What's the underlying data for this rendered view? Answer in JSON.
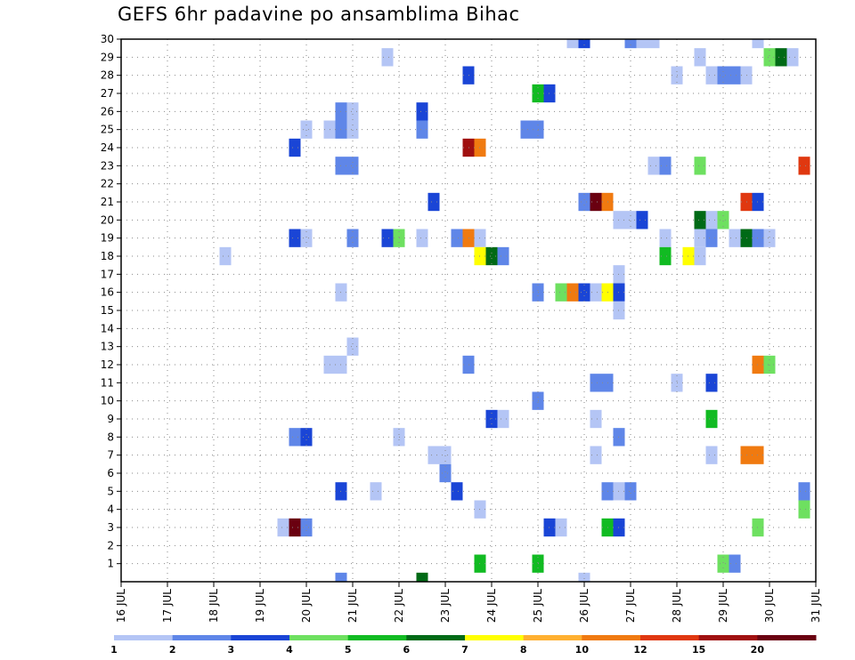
{
  "chart_data": {
    "type": "heatmap",
    "title": "GEFS 6hr padavine po ansamblima Bihac",
    "xlabel": "",
    "ylabel": "",
    "x_ticks": [
      "16 JUL",
      "17 JUL",
      "18 JUL",
      "19 JUL",
      "20 JUL",
      "21 JUL",
      "22 JUL",
      "23 JUL",
      "24 JUL",
      "25 JUL",
      "26 JUL",
      "27 JUL",
      "28 JUL",
      "29 JUL",
      "30 JUL",
      "31 JUL"
    ],
    "x_range_days": [
      16,
      31
    ],
    "y_ticks": [
      1,
      2,
      3,
      4,
      5,
      6,
      7,
      8,
      9,
      10,
      11,
      12,
      13,
      14,
      15,
      16,
      17,
      18,
      19,
      20,
      21,
      22,
      23,
      24,
      25,
      26,
      27,
      28,
      29,
      30
    ],
    "y_range": [
      0,
      30
    ],
    "grid": true,
    "legend_position": "bottom",
    "color_scale": {
      "levels": [
        "1",
        "2",
        "3",
        "4",
        "5",
        "6",
        "7",
        "8",
        "10",
        "12",
        "15",
        "20"
      ],
      "colors": [
        "#b4c5f5",
        "#5f86e8",
        "#1a45d6",
        "#6ee060",
        "#11bb22",
        "#006a16",
        "#ffff00",
        "#ffb030",
        "#f07a10",
        "#e03810",
        "#a01010",
        "#6a0010"
      ]
    },
    "cells": [
      {
        "m": 30,
        "d": "2026-07-25 18:00",
        "v": 1
      },
      {
        "m": 30,
        "d": "2026-07-26 00:00",
        "v": 3
      },
      {
        "m": 30,
        "d": "2026-07-27 00:00",
        "v": 2
      },
      {
        "m": 30,
        "d": "2026-07-27 06:00",
        "v": 1
      },
      {
        "m": 30,
        "d": "2026-07-27 12:00",
        "v": 1
      },
      {
        "m": 30,
        "d": "2026-07-29 18:00",
        "v": 1
      },
      {
        "m": 29,
        "d": "2026-07-21 18:00",
        "v": 1
      },
      {
        "m": 29,
        "d": "2026-07-28 12:00",
        "v": 1
      },
      {
        "m": 29,
        "d": "2026-07-30 00:00",
        "v": 4
      },
      {
        "m": 29,
        "d": "2026-07-30 06:00",
        "v": 6
      },
      {
        "m": 29,
        "d": "2026-07-30 12:00",
        "v": 1
      },
      {
        "m": 28,
        "d": "2026-07-23 12:00",
        "v": 3
      },
      {
        "m": 28,
        "d": "2026-07-28 00:00",
        "v": 1
      },
      {
        "m": 28,
        "d": "2026-07-28 18:00",
        "v": 1
      },
      {
        "m": 28,
        "d": "2026-07-29 00:00",
        "v": 2
      },
      {
        "m": 28,
        "d": "2026-07-29 06:00",
        "v": 2
      },
      {
        "m": 28,
        "d": "2026-07-29 12:00",
        "v": 1
      },
      {
        "m": 27,
        "d": "2026-07-25 00:00",
        "v": 5
      },
      {
        "m": 27,
        "d": "2026-07-25 06:00",
        "v": 3
      },
      {
        "m": 26,
        "d": "2026-07-20 18:00",
        "v": 2
      },
      {
        "m": 26,
        "d": "2026-07-21 00:00",
        "v": 1
      },
      {
        "m": 26,
        "d": "2026-07-22 12:00",
        "v": 3
      },
      {
        "m": 25,
        "d": "2026-07-20 00:00",
        "v": 1
      },
      {
        "m": 25,
        "d": "2026-07-20 12:00",
        "v": 1
      },
      {
        "m": 25,
        "d": "2026-07-20 18:00",
        "v": 2
      },
      {
        "m": 25,
        "d": "2026-07-21 00:00",
        "v": 1
      },
      {
        "m": 25,
        "d": "2026-07-22 12:00",
        "v": 2
      },
      {
        "m": 25,
        "d": "2026-07-24 18:00",
        "v": 2
      },
      {
        "m": 25,
        "d": "2026-07-25 00:00",
        "v": 2
      },
      {
        "m": 24,
        "d": "2026-07-19 18:00",
        "v": 3
      },
      {
        "m": 24,
        "d": "2026-07-23 12:00",
        "v": 15
      },
      {
        "m": 24,
        "d": "2026-07-23 18:00",
        "v": 10
      },
      {
        "m": 23,
        "d": "2026-07-20 18:00",
        "v": 2
      },
      {
        "m": 23,
        "d": "2026-07-21 00:00",
        "v": 2
      },
      {
        "m": 23,
        "d": "2026-07-27 12:00",
        "v": 1
      },
      {
        "m": 23,
        "d": "2026-07-27 18:00",
        "v": 2
      },
      {
        "m": 23,
        "d": "2026-07-28 12:00",
        "v": 4
      },
      {
        "m": 23,
        "d": "2026-07-30 18:00",
        "v": 12
      },
      {
        "m": 21,
        "d": "2026-07-22 18:00",
        "v": 3
      },
      {
        "m": 21,
        "d": "2026-07-26 00:00",
        "v": 2
      },
      {
        "m": 21,
        "d": "2026-07-26 06:00",
        "v": 20
      },
      {
        "m": 21,
        "d": "2026-07-26 12:00",
        "v": 10
      },
      {
        "m": 21,
        "d": "2026-07-29 12:00",
        "v": 12
      },
      {
        "m": 21,
        "d": "2026-07-29 18:00",
        "v": 3
      },
      {
        "m": 20,
        "d": "2026-07-26 18:00",
        "v": 1
      },
      {
        "m": 20,
        "d": "2026-07-27 00:00",
        "v": 1
      },
      {
        "m": 20,
        "d": "2026-07-27 06:00",
        "v": 3
      },
      {
        "m": 20,
        "d": "2026-07-28 12:00",
        "v": 6
      },
      {
        "m": 20,
        "d": "2026-07-28 18:00",
        "v": 1
      },
      {
        "m": 20,
        "d": "2026-07-29 00:00",
        "v": 4
      },
      {
        "m": 19,
        "d": "2026-07-19 18:00",
        "v": 3
      },
      {
        "m": 19,
        "d": "2026-07-20 00:00",
        "v": 1
      },
      {
        "m": 19,
        "d": "2026-07-21 00:00",
        "v": 2
      },
      {
        "m": 19,
        "d": "2026-07-21 18:00",
        "v": 3
      },
      {
        "m": 19,
        "d": "2026-07-22 00:00",
        "v": 4
      },
      {
        "m": 19,
        "d": "2026-07-22 12:00",
        "v": 1
      },
      {
        "m": 19,
        "d": "2026-07-23 06:00",
        "v": 2
      },
      {
        "m": 19,
        "d": "2026-07-23 12:00",
        "v": 10
      },
      {
        "m": 19,
        "d": "2026-07-23 18:00",
        "v": 1
      },
      {
        "m": 19,
        "d": "2026-07-27 18:00",
        "v": 1
      },
      {
        "m": 19,
        "d": "2026-07-28 12:00",
        "v": 1
      },
      {
        "m": 19,
        "d": "2026-07-28 18:00",
        "v": 2
      },
      {
        "m": 19,
        "d": "2026-07-29 06:00",
        "v": 1
      },
      {
        "m": 19,
        "d": "2026-07-29 12:00",
        "v": 6
      },
      {
        "m": 19,
        "d": "2026-07-29 18:00",
        "v": 2
      },
      {
        "m": 19,
        "d": "2026-07-30 00:00",
        "v": 1
      },
      {
        "m": 18,
        "d": "2026-07-18 06:00",
        "v": 1
      },
      {
        "m": 18,
        "d": "2026-07-23 18:00",
        "v": 7
      },
      {
        "m": 18,
        "d": "2026-07-24 00:00",
        "v": 6
      },
      {
        "m": 18,
        "d": "2026-07-24 06:00",
        "v": 2
      },
      {
        "m": 18,
        "d": "2026-07-27 18:00",
        "v": 5
      },
      {
        "m": 18,
        "d": "2026-07-28 06:00",
        "v": 7
      },
      {
        "m": 18,
        "d": "2026-07-28 12:00",
        "v": 1
      },
      {
        "m": 17,
        "d": "2026-07-26 18:00",
        "v": 1
      },
      {
        "m": 16,
        "d": "2026-07-20 18:00",
        "v": 1
      },
      {
        "m": 16,
        "d": "2026-07-25 00:00",
        "v": 2
      },
      {
        "m": 16,
        "d": "2026-07-25 12:00",
        "v": 4
      },
      {
        "m": 16,
        "d": "2026-07-25 18:00",
        "v": 10
      },
      {
        "m": 16,
        "d": "2026-07-26 00:00",
        "v": 3
      },
      {
        "m": 16,
        "d": "2026-07-26 06:00",
        "v": 1
      },
      {
        "m": 16,
        "d": "2026-07-26 12:00",
        "v": 7
      },
      {
        "m": 16,
        "d": "2026-07-26 18:00",
        "v": 3
      },
      {
        "m": 15,
        "d": "2026-07-26 18:00",
        "v": 1
      },
      {
        "m": 13,
        "d": "2026-07-21 00:00",
        "v": 1
      },
      {
        "m": 12,
        "d": "2026-07-20 12:00",
        "v": 1
      },
      {
        "m": 12,
        "d": "2026-07-20 18:00",
        "v": 1
      },
      {
        "m": 12,
        "d": "2026-07-23 12:00",
        "v": 2
      },
      {
        "m": 12,
        "d": "2026-07-29 18:00",
        "v": 10
      },
      {
        "m": 12,
        "d": "2026-07-30 00:00",
        "v": 4
      },
      {
        "m": 11,
        "d": "2026-07-26 06:00",
        "v": 2
      },
      {
        "m": 11,
        "d": "2026-07-26 12:00",
        "v": 2
      },
      {
        "m": 11,
        "d": "2026-07-28 00:00",
        "v": 1
      },
      {
        "m": 11,
        "d": "2026-07-28 18:00",
        "v": 3
      },
      {
        "m": 10,
        "d": "2026-07-25 00:00",
        "v": 2
      },
      {
        "m": 9,
        "d": "2026-07-24 00:00",
        "v": 3
      },
      {
        "m": 9,
        "d": "2026-07-24 06:00",
        "v": 1
      },
      {
        "m": 9,
        "d": "2026-07-26 06:00",
        "v": 1
      },
      {
        "m": 9,
        "d": "2026-07-28 18:00",
        "v": 5
      },
      {
        "m": 8,
        "d": "2026-07-19 18:00",
        "v": 2
      },
      {
        "m": 8,
        "d": "2026-07-20 00:00",
        "v": 3
      },
      {
        "m": 8,
        "d": "2026-07-22 00:00",
        "v": 1
      },
      {
        "m": 8,
        "d": "2026-07-26 18:00",
        "v": 2
      },
      {
        "m": 7,
        "d": "2026-07-22 18:00",
        "v": 1
      },
      {
        "m": 7,
        "d": "2026-07-23 00:00",
        "v": 1
      },
      {
        "m": 7,
        "d": "2026-07-26 06:00",
        "v": 1
      },
      {
        "m": 7,
        "d": "2026-07-28 18:00",
        "v": 1
      },
      {
        "m": 7,
        "d": "2026-07-29 12:00",
        "v": 10
      },
      {
        "m": 7,
        "d": "2026-07-29 18:00",
        "v": 10
      },
      {
        "m": 6,
        "d": "2026-07-23 00:00",
        "v": 2
      },
      {
        "m": 5,
        "d": "2026-07-20 18:00",
        "v": 3
      },
      {
        "m": 5,
        "d": "2026-07-21 12:00",
        "v": 1
      },
      {
        "m": 5,
        "d": "2026-07-23 06:00",
        "v": 3
      },
      {
        "m": 5,
        "d": "2026-07-26 12:00",
        "v": 2
      },
      {
        "m": 5,
        "d": "2026-07-26 18:00",
        "v": 1
      },
      {
        "m": 5,
        "d": "2026-07-27 00:00",
        "v": 2
      },
      {
        "m": 5,
        "d": "2026-07-30 18:00",
        "v": 2
      },
      {
        "m": 4,
        "d": "2026-07-23 18:00",
        "v": 1
      },
      {
        "m": 4,
        "d": "2026-07-30 18:00",
        "v": 4
      },
      {
        "m": 3,
        "d": "2026-07-19 12:00",
        "v": 1
      },
      {
        "m": 3,
        "d": "2026-07-19 18:00",
        "v": 20
      },
      {
        "m": 3,
        "d": "2026-07-20 00:00",
        "v": 2
      },
      {
        "m": 3,
        "d": "2026-07-25 06:00",
        "v": 3
      },
      {
        "m": 3,
        "d": "2026-07-25 12:00",
        "v": 1
      },
      {
        "m": 3,
        "d": "2026-07-26 12:00",
        "v": 5
      },
      {
        "m": 3,
        "d": "2026-07-26 18:00",
        "v": 3
      },
      {
        "m": 3,
        "d": "2026-07-29 18:00",
        "v": 4
      },
      {
        "m": 1,
        "d": "2026-07-23 18:00",
        "v": 5
      },
      {
        "m": 1,
        "d": "2026-07-25 00:00",
        "v": 5
      },
      {
        "m": 1,
        "d": "2026-07-29 00:00",
        "v": 4
      },
      {
        "m": 1,
        "d": "2026-07-29 06:00",
        "v": 2
      },
      {
        "m": 0,
        "d": "2026-07-20 18:00",
        "v": 2
      },
      {
        "m": 0,
        "d": "2026-07-22 12:00",
        "v": 6
      },
      {
        "m": 0,
        "d": "2026-07-26 00:00",
        "v": 1
      }
    ]
  }
}
